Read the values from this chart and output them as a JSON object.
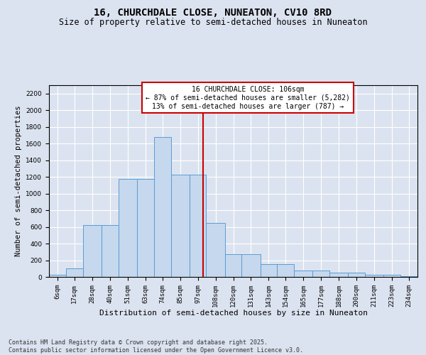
{
  "title": "16, CHURCHDALE CLOSE, NUNEATON, CV10 8RD",
  "subtitle": "Size of property relative to semi-detached houses in Nuneaton",
  "xlabel": "Distribution of semi-detached houses by size in Nuneaton",
  "ylabel": "Number of semi-detached properties",
  "footer_line1": "Contains HM Land Registry data © Crown copyright and database right 2025.",
  "footer_line2": "Contains public sector information licensed under the Open Government Licence v3.0.",
  "annotation_title": "16 CHURCHDALE CLOSE: 106sqm",
  "annotation_line1": "← 87% of semi-detached houses are smaller (5,282)",
  "annotation_line2": "13% of semi-detached houses are larger (787) →",
  "bin_edges": [
    6,
    17,
    28,
    40,
    51,
    63,
    74,
    85,
    97,
    108,
    120,
    131,
    143,
    154,
    165,
    177,
    188,
    200,
    211,
    223,
    234,
    245
  ],
  "bin_labels": [
    "6sqm",
    "17sqm",
    "28sqm",
    "40sqm",
    "51sqm",
    "63sqm",
    "74sqm",
    "85sqm",
    "97sqm",
    "108sqm",
    "120sqm",
    "131sqm",
    "143sqm",
    "154sqm",
    "165sqm",
    "177sqm",
    "188sqm",
    "200sqm",
    "211sqm",
    "223sqm",
    "234sqm"
  ],
  "bar_heights": [
    25,
    100,
    625,
    625,
    1175,
    1175,
    1675,
    1225,
    1225,
    650,
    275,
    275,
    150,
    150,
    75,
    75,
    50,
    50,
    25,
    25,
    10
  ],
  "bar_color": "#c5d8ed",
  "bar_edge_color": "#5b9bd5",
  "vline_color": "#cc0000",
  "vline_x": 106,
  "ylim": [
    0,
    2300
  ],
  "yticks": [
    0,
    200,
    400,
    600,
    800,
    1000,
    1200,
    1400,
    1600,
    1800,
    2000,
    2200
  ],
  "background_color": "#dce3f0",
  "grid_color": "#ffffff",
  "title_fontsize": 10,
  "subtitle_fontsize": 8.5,
  "ylabel_fontsize": 7.5,
  "xlabel_fontsize": 8,
  "tick_fontsize": 6.5,
  "ann_fontsize": 7,
  "footer_fontsize": 6
}
